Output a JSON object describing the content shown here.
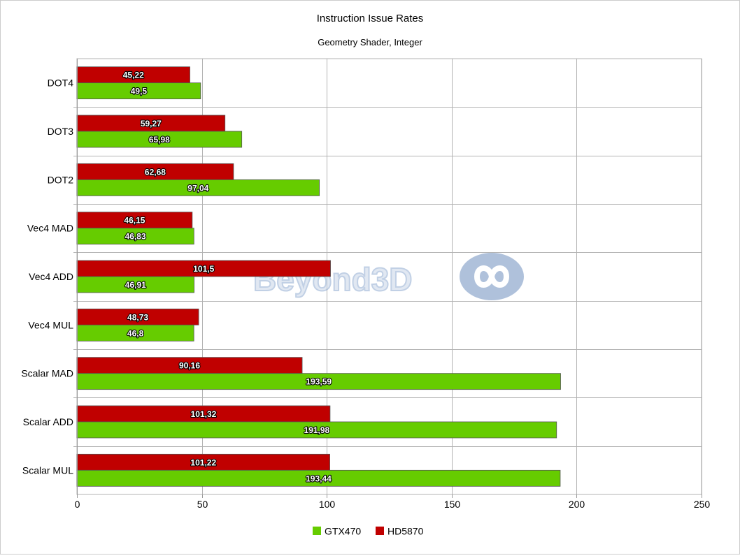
{
  "chart_data": {
    "type": "bar",
    "orientation": "horizontal",
    "title": "Instruction Issue Rates",
    "subtitle": "Geometry Shader, Integer",
    "categories": [
      "DOT4",
      "DOT3",
      "DOT2",
      "Vec4 MAD",
      "Vec4 ADD",
      "Vec4 MUL",
      "Scalar MAD",
      "Scalar ADD",
      "Scalar MUL"
    ],
    "series": [
      {
        "name": "HD5870",
        "color": "#c00000",
        "values": [
          45.22,
          59.27,
          62.68,
          46.15,
          101.5,
          48.73,
          90.16,
          101.32,
          101.22
        ],
        "labels": [
          "45,22",
          "59,27",
          "62,68",
          "46,15",
          "101,5",
          "48,73",
          "90,16",
          "101,32",
          "101,22"
        ]
      },
      {
        "name": "GTX470",
        "color": "#66cc00",
        "values": [
          49.5,
          65.98,
          97.04,
          46.83,
          46.91,
          46.8,
          193.59,
          191.98,
          193.44
        ],
        "labels": [
          "49,5",
          "65,98",
          "97,04",
          "46,83",
          "46,91",
          "46,8",
          "193,59",
          "191,98",
          "193,44"
        ]
      }
    ],
    "legend": {
      "placement": "bottom",
      "order": [
        "GTX470",
        "HD5870"
      ]
    },
    "xlim": [
      0,
      250
    ],
    "xticks": [
      0,
      50,
      100,
      150,
      200,
      250
    ],
    "xtick_labels": [
      "0",
      "50",
      "100",
      "150",
      "200",
      "250"
    ],
    "grid": true
  },
  "watermark": {
    "text": "Beyond3D",
    "logo": "infinity-icon"
  }
}
